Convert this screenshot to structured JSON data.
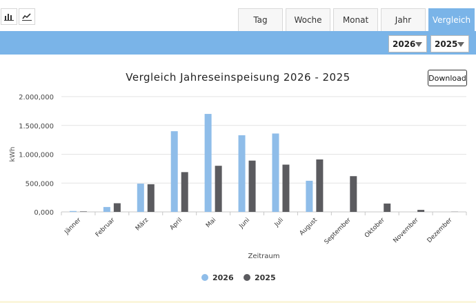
{
  "toolbar": {
    "icons": [
      "bar-chart-icon",
      "line-chart-icon"
    ]
  },
  "tabs": [
    {
      "label": "Tag",
      "active": false
    },
    {
      "label": "Woche",
      "active": false
    },
    {
      "label": "Monat",
      "active": false
    },
    {
      "label": "Jahr",
      "active": false
    },
    {
      "label": "Vergleich",
      "active": true
    }
  ],
  "selects": {
    "year_a": "2026",
    "year_b": "2025"
  },
  "download_label": "Download",
  "colors": {
    "accent": "#7ab4e8",
    "series_2026": "#8fbde9",
    "series_2025": "#5b5b5f"
  },
  "chart_data": {
    "type": "bar",
    "title": "Vergleich Jahreseinspeisung 2026 - 2025",
    "xlabel": "Zeitraum",
    "ylabel": "kWh",
    "categories": [
      "Jänner",
      "Februar",
      "März",
      "April",
      "Mai",
      "Juni",
      "Juli",
      "August",
      "September",
      "Oktober",
      "November",
      "Dezember"
    ],
    "series": [
      {
        "name": "2026",
        "values": [
          15000,
          85000,
          490000,
          1400000,
          1700000,
          1330000,
          1360000,
          540000,
          0,
          0,
          0,
          0
        ]
      },
      {
        "name": "2025",
        "values": [
          8000,
          150000,
          480000,
          690000,
          800000,
          890000,
          820000,
          910000,
          620000,
          145000,
          35000,
          3000
        ]
      }
    ],
    "ylim": [
      0,
      2000000
    ],
    "yticks": [
      0,
      500000,
      1000000,
      1500000,
      2000000
    ],
    "ytick_labels": [
      "0,000",
      "500,000",
      "1.000,000",
      "1.500,000",
      "2.000,000"
    ],
    "grid": true,
    "legend": "bottom-center"
  }
}
